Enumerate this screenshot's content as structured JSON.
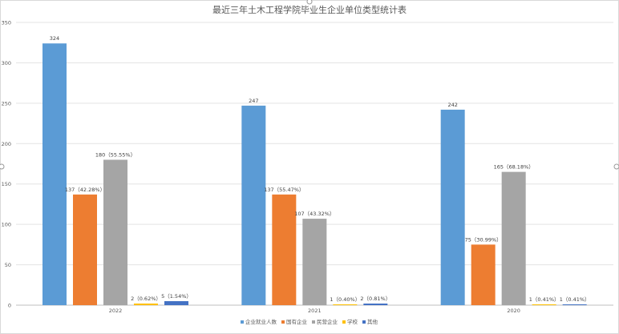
{
  "chart_data": {
    "type": "bar",
    "title": "最近三年土木工程学院毕业生企业单位类型统计表",
    "categories": [
      "2022",
      "2021",
      "2020"
    ],
    "ylim": [
      0,
      350
    ],
    "yticks": [
      "0",
      "50",
      "100",
      "150",
      "200",
      "250",
      "300",
      "350"
    ],
    "grid": true,
    "legend_position": "bottom",
    "series": [
      {
        "name": "企业就业人数",
        "color": "#5b9bd5",
        "values": [
          324,
          247,
          242
        ],
        "labels": [
          "324",
          "247",
          "242"
        ]
      },
      {
        "name": "国有企业",
        "color": "#ed7d31",
        "values": [
          137,
          137,
          75
        ],
        "labels": [
          "137（42.28%）",
          "137（55.47%）",
          "75（30.99%）"
        ]
      },
      {
        "name": "民营企业",
        "color": "#a5a5a5",
        "values": [
          180,
          107,
          165
        ],
        "labels": [
          "180（55.55%）",
          "107（43.32%）",
          "165（68.18%）"
        ]
      },
      {
        "name": "学校",
        "color": "#ffc000",
        "values": [
          2,
          1,
          1
        ],
        "labels": [
          "2（0.62%）",
          "1（0.40%）",
          "1（0.41%）"
        ]
      },
      {
        "name": "其他",
        "color": "#4472c4",
        "values": [
          5,
          2,
          1
        ],
        "labels": [
          "5（1.54%）",
          "2（0.81%）",
          "1（0.41%）"
        ]
      }
    ]
  }
}
